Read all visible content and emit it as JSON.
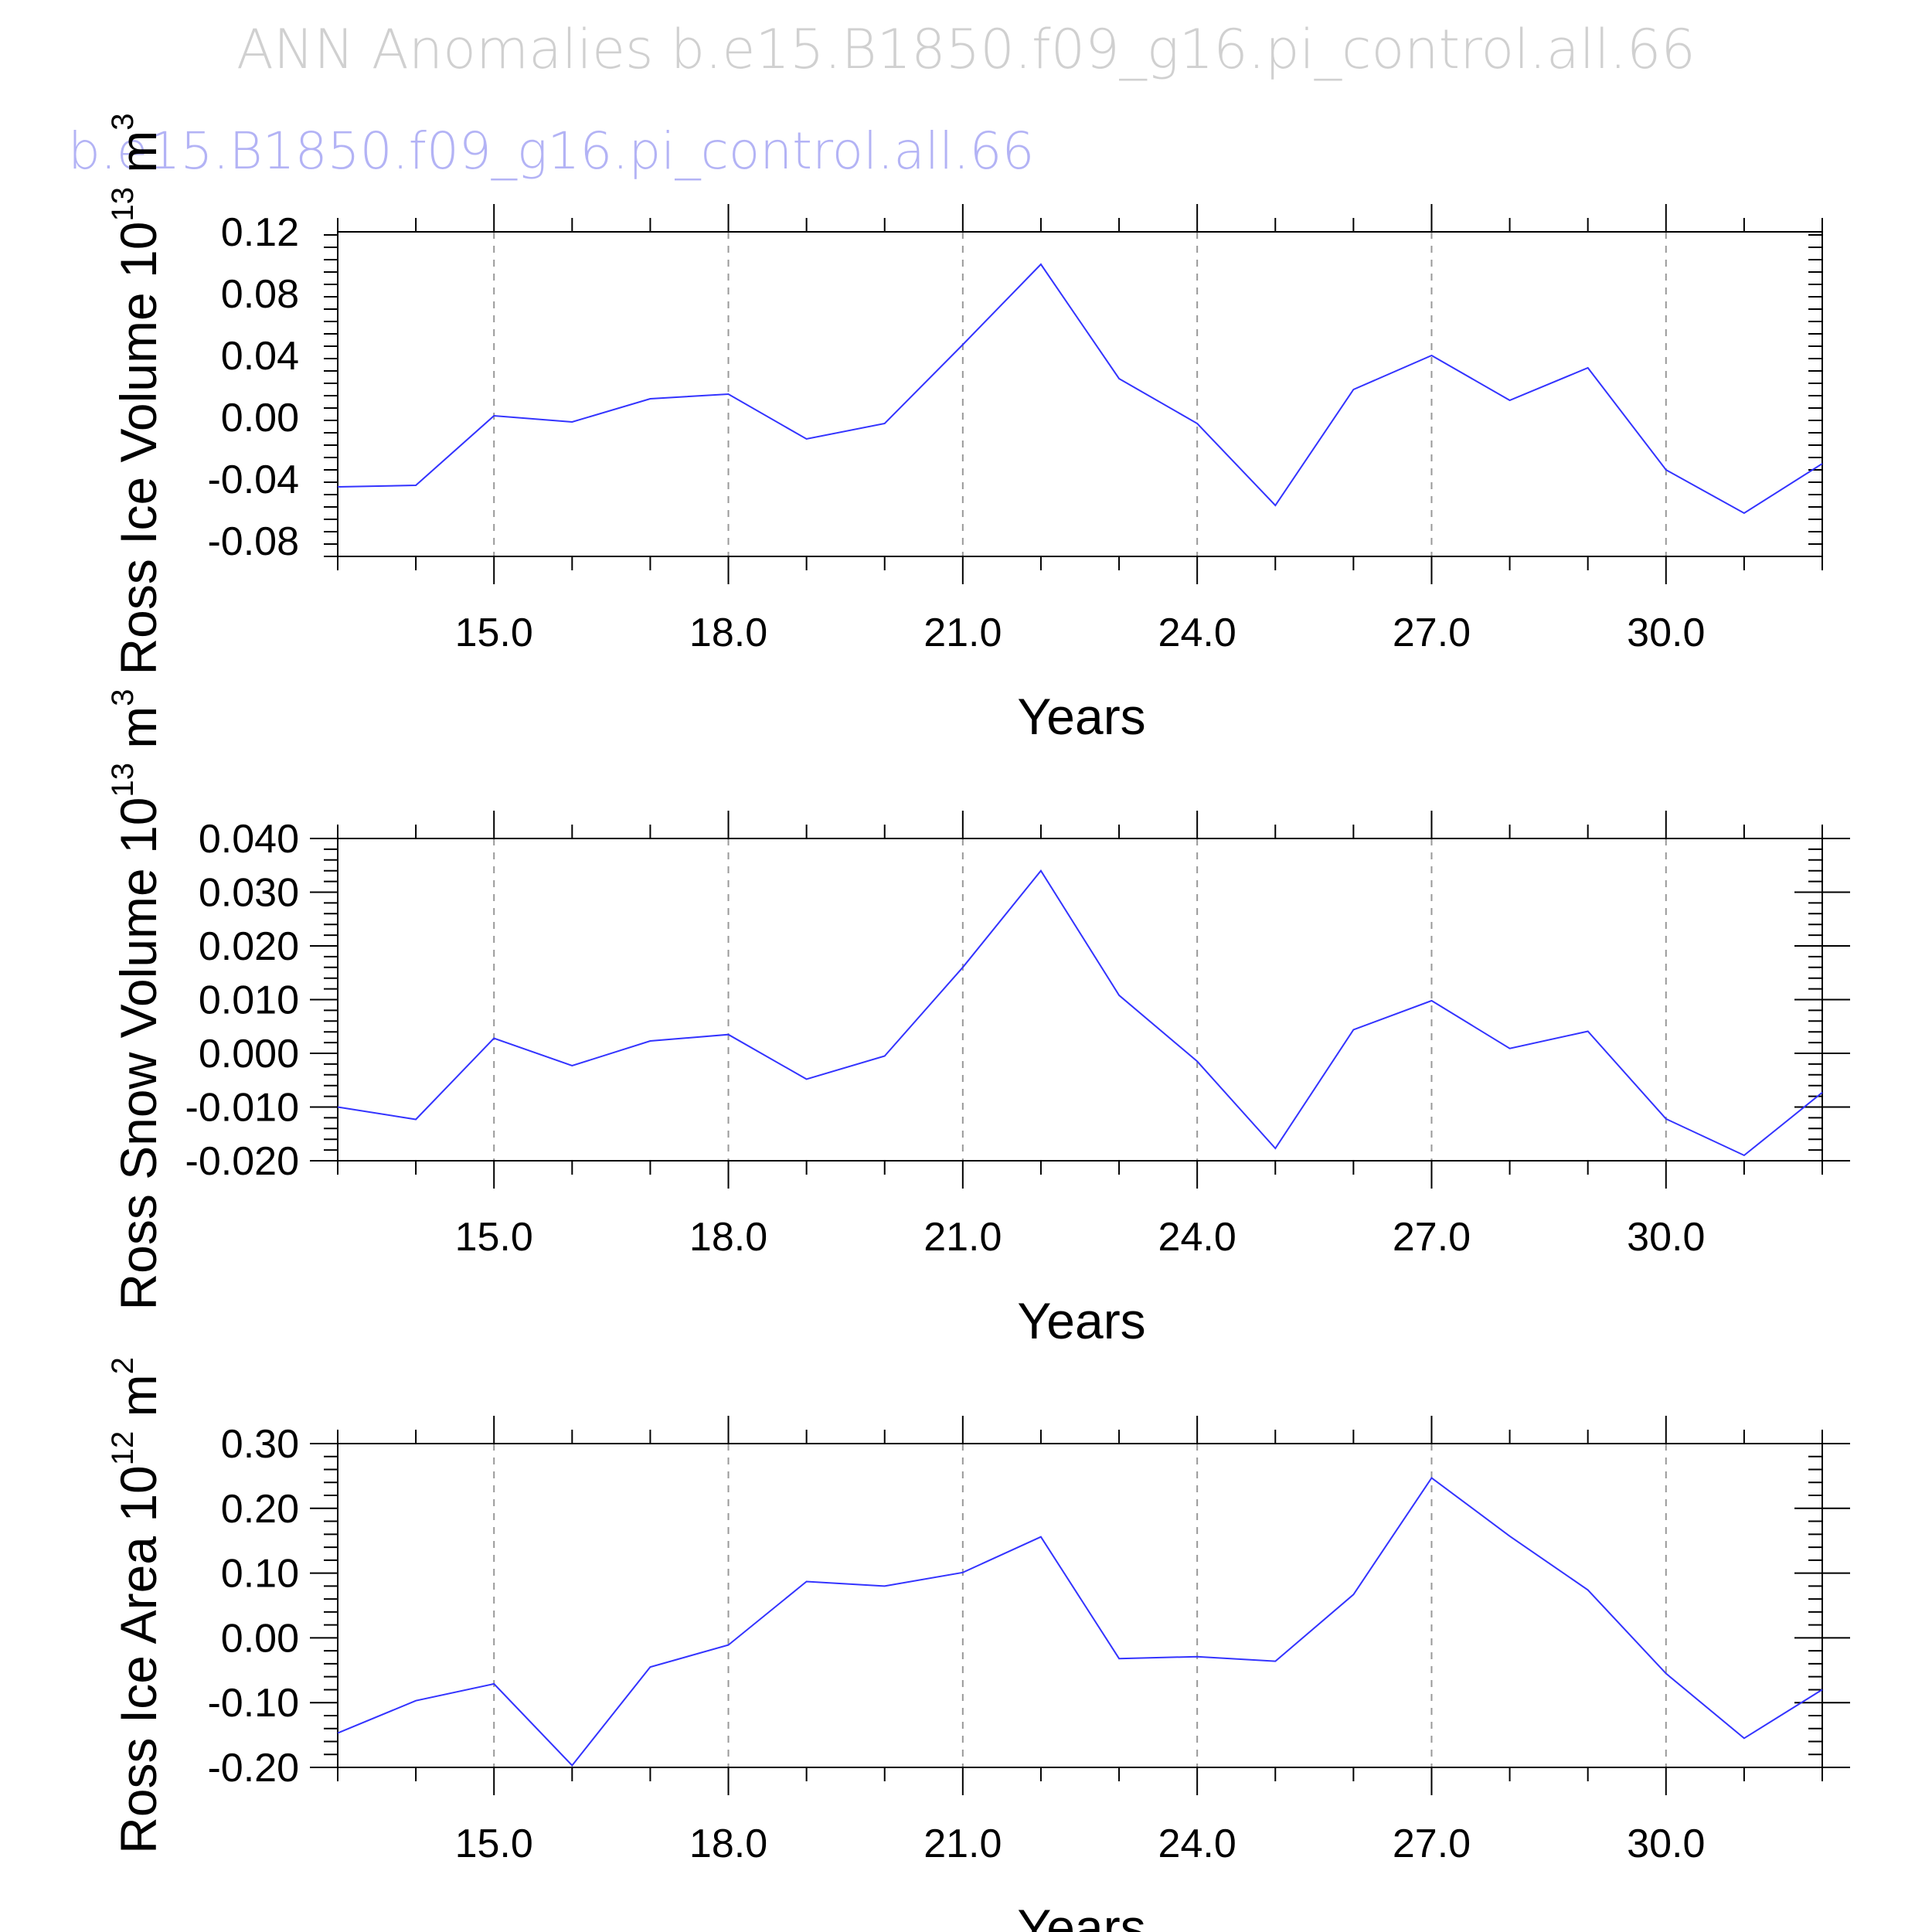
{
  "title": "ANN Anomalies b.e15.B1850.f09_g16.pi_control.all.66",
  "subtitle": "b.e15.B1850.f09_g16.pi_control.all.66",
  "colors": {
    "line": "#3333ff",
    "grid": "#999999",
    "axis": "#000000",
    "title": "#d0d0d0",
    "subtitle": "#b3b3f5"
  },
  "chart_data": [
    {
      "type": "line",
      "title": "",
      "xlabel": "Years",
      "ylabel": "Ross Ice Volume 10",
      "ylabel_exp": "13",
      "ylabel_unit": "m",
      "ylabel_unit_exp": "3",
      "xlim": [
        13,
        32
      ],
      "ylim": [
        -0.09,
        0.12
      ],
      "xticks": [
        15,
        18,
        21,
        24,
        27,
        30
      ],
      "xtick_labels": [
        "15.0",
        "18.0",
        "21.0",
        "24.0",
        "27.0",
        "30.0"
      ],
      "yticks": [
        -0.08,
        -0.04,
        0.0,
        0.04,
        0.08,
        0.12
      ],
      "ytick_labels": [
        "-0.08",
        "-0.04",
        "0.00",
        "0.04",
        "0.08",
        "0.12"
      ],
      "grid": "vertical dashed",
      "series": [
        {
          "name": "Ross Ice Volume",
          "x": [
            13,
            14,
            15,
            16,
            17,
            18,
            19,
            20,
            21,
            22,
            23,
            24,
            25,
            26,
            27,
            28,
            29,
            30,
            31,
            32
          ],
          "values": [
            -0.045,
            -0.044,
            0.001,
            -0.003,
            0.012,
            0.015,
            -0.014,
            -0.004,
            0.047,
            0.099,
            0.025,
            -0.004,
            -0.057,
            0.018,
            0.04,
            0.011,
            0.032,
            -0.034,
            -0.062,
            -0.03
          ]
        }
      ]
    },
    {
      "type": "line",
      "title": "",
      "xlabel": "Years",
      "ylabel": "Ross Snow Volume 10",
      "ylabel_exp": "13",
      "ylabel_unit": "m",
      "ylabel_unit_exp": "3",
      "xlim": [
        13,
        32
      ],
      "ylim": [
        -0.02,
        0.04
      ],
      "xticks": [
        15,
        18,
        21,
        24,
        27,
        30
      ],
      "xtick_labels": [
        "15.0",
        "18.0",
        "21.0",
        "24.0",
        "27.0",
        "30.0"
      ],
      "yticks": [
        -0.02,
        -0.01,
        0.0,
        0.01,
        0.02,
        0.03,
        0.04
      ],
      "ytick_labels": [
        "-0.020",
        "-0.010",
        "0.000",
        "0.010",
        "0.020",
        "0.030",
        "0.040"
      ],
      "grid": "vertical dashed",
      "series": [
        {
          "name": "Ross Snow Volume",
          "x": [
            13,
            14,
            15,
            16,
            17,
            18,
            19,
            20,
            21,
            22,
            23,
            24,
            25,
            26,
            27,
            28,
            29,
            30,
            31,
            32
          ],
          "values": [
            -0.01,
            -0.0123,
            0.0028,
            -0.0023,
            0.0023,
            0.0035,
            -0.0048,
            -0.0005,
            0.016,
            0.034,
            0.0108,
            -0.0015,
            -0.0177,
            0.0044,
            0.0098,
            0.0009,
            0.0041,
            -0.0122,
            -0.019,
            -0.0073
          ]
        }
      ]
    },
    {
      "type": "line",
      "title": "",
      "xlabel": "Years",
      "ylabel": "Ross Ice Area 10",
      "ylabel_exp": "12",
      "ylabel_unit": "m",
      "ylabel_unit_exp": "2",
      "xlim": [
        13,
        32
      ],
      "ylim": [
        -0.2,
        0.3
      ],
      "xticks": [
        15,
        18,
        21,
        24,
        27,
        30
      ],
      "xtick_labels": [
        "15.0",
        "18.0",
        "21.0",
        "24.0",
        "27.0",
        "30.0"
      ],
      "yticks": [
        -0.2,
        -0.1,
        0.0,
        0.1,
        0.2,
        0.3
      ],
      "ytick_labels": [
        "-0.20",
        "-0.10",
        "0.00",
        "0.10",
        "0.20",
        "0.30"
      ],
      "grid": "vertical dashed",
      "series": [
        {
          "name": "Ross Ice Area",
          "x": [
            13,
            14,
            15,
            16,
            17,
            18,
            19,
            20,
            21,
            22,
            23,
            24,
            25,
            26,
            27,
            28,
            29,
            30,
            31,
            32
          ],
          "values": [
            -0.147,
            -0.097,
            -0.071,
            -0.197,
            -0.045,
            -0.011,
            0.087,
            0.08,
            0.101,
            0.156,
            -0.032,
            -0.029,
            -0.036,
            0.067,
            0.247,
            0.157,
            0.074,
            -0.055,
            -0.155,
            -0.08
          ]
        }
      ]
    }
  ]
}
